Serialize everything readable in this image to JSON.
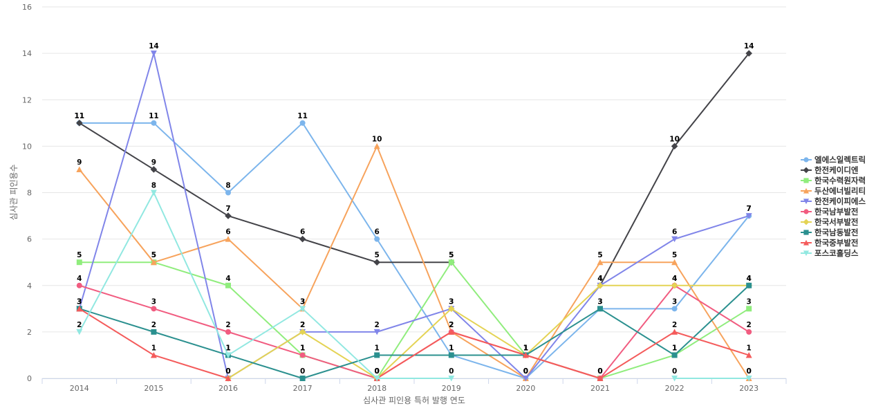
{
  "chart_data": {
    "type": "line",
    "title": "",
    "xlabel": "심사관 피인용 특허 발행 연도",
    "ylabel": "심사관 피인용수",
    "ylim": [
      0,
      16
    ],
    "yticks": [
      0,
      2,
      4,
      6,
      8,
      10,
      12,
      14,
      16
    ],
    "grid": true,
    "legend_position": "right",
    "categories": [
      "2014",
      "2015",
      "2016",
      "2017",
      "2018",
      "2019",
      "2020",
      "2021",
      "2022",
      "2023"
    ],
    "series": [
      {
        "name": "엘에스일렉트릭",
        "color": "#7cb5ec",
        "marker": "circle",
        "values": [
          11,
          11,
          8,
          11,
          6,
          1,
          0,
          3,
          3,
          7
        ]
      },
      {
        "name": "한전케이디엔",
        "color": "#434348",
        "marker": "diamond",
        "values": [
          11,
          9,
          7,
          6,
          5,
          5,
          null,
          4,
          10,
          14
        ]
      },
      {
        "name": "한국수력원자력",
        "color": "#90ed7d",
        "marker": "square",
        "values": [
          5,
          5,
          4,
          1,
          0,
          5,
          1,
          0,
          1,
          3
        ]
      },
      {
        "name": "두산에너빌리티",
        "color": "#f7a35c",
        "marker": "triangle",
        "values": [
          9,
          5,
          6,
          3,
          10,
          2,
          0,
          5,
          5,
          0
        ]
      },
      {
        "name": "한전케이피에스",
        "color": "#8085e9",
        "marker": "triangle-down",
        "values": [
          3,
          14,
          0,
          2,
          2,
          3,
          0,
          4,
          6,
          7
        ]
      },
      {
        "name": "한국남부발전",
        "color": "#f15c80",
        "marker": "circle",
        "values": [
          4,
          3,
          2,
          1,
          0,
          2,
          1,
          0,
          4,
          2
        ]
      },
      {
        "name": "한국서부발전",
        "color": "#e4d354",
        "marker": "diamond",
        "values": [
          null,
          null,
          0,
          2,
          0,
          3,
          1,
          4,
          4,
          4
        ]
      },
      {
        "name": "한국남동발전",
        "color": "#2b908f",
        "marker": "square",
        "values": [
          3,
          2,
          1,
          0,
          1,
          1,
          1,
          3,
          1,
          4
        ]
      },
      {
        "name": "한국중부발전",
        "color": "#f45b5b",
        "marker": "triangle",
        "values": [
          3,
          1,
          0,
          null,
          0,
          2,
          1,
          0,
          2,
          1
        ]
      },
      {
        "name": "포스코홀딩스",
        "color": "#91e8e1",
        "marker": "triangle-down",
        "values": [
          2,
          8,
          1,
          3,
          0,
          0,
          null,
          null,
          0,
          0
        ]
      }
    ]
  }
}
